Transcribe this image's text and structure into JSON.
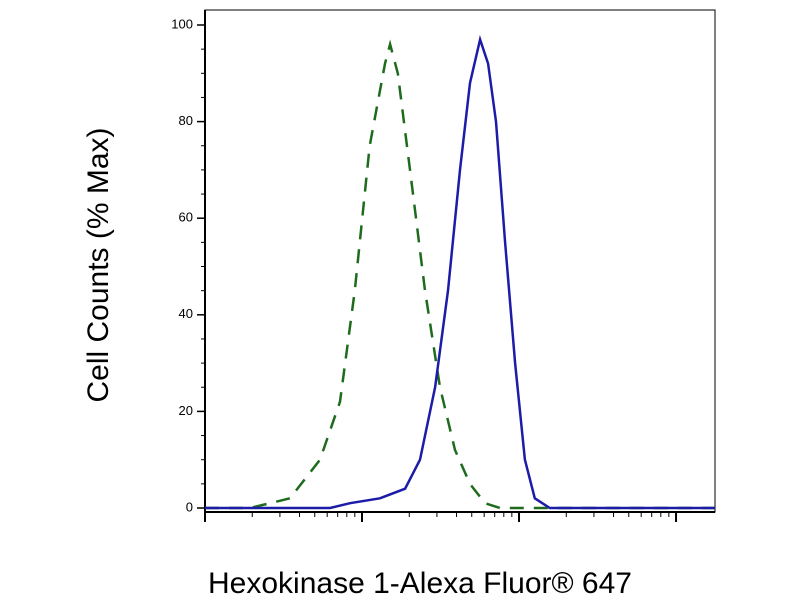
{
  "chart_data": {
    "type": "line",
    "xlabel": "Hexokinase 1-Alexa Fluor® 647",
    "ylabel": "Cell Counts (% Max)",
    "xscale": "log",
    "xlim": [
      1,
      1771
    ],
    "xticks": [
      1,
      10,
      100,
      1000
    ],
    "ylim": [
      0,
      100
    ],
    "yticks": [
      0,
      20,
      40,
      60,
      80,
      100
    ],
    "series": [
      {
        "color": "#1e6b1e",
        "dash": true,
        "x": [
          1,
          1.94,
          3.48,
          5.4,
          7.24,
          9.0,
          11.2,
          14.0,
          15.1,
          16.9,
          20.2,
          25.2,
          31.4,
          39.1,
          48.7,
          60.7,
          75.7,
          1771
        ],
        "values": [
          0,
          0,
          2,
          10,
          22,
          45,
          75,
          92,
          96,
          90,
          70,
          45,
          25,
          12,
          5,
          1,
          0,
          0
        ]
      },
      {
        "color": "#1c1ca8",
        "dash": false,
        "x": [
          1,
          6.26,
          8.39,
          13.0,
          18.8,
          23.4,
          29.2,
          35.3,
          42.1,
          48.7,
          56.5,
          63.5,
          71.4,
          81.5,
          94.4,
          109,
          126,
          157,
          1771
        ],
        "values": [
          0,
          0,
          1,
          2,
          4,
          10,
          25,
          45,
          70,
          88,
          97,
          92,
          80,
          55,
          30,
          10,
          2,
          0,
          0
        ]
      }
    ]
  }
}
